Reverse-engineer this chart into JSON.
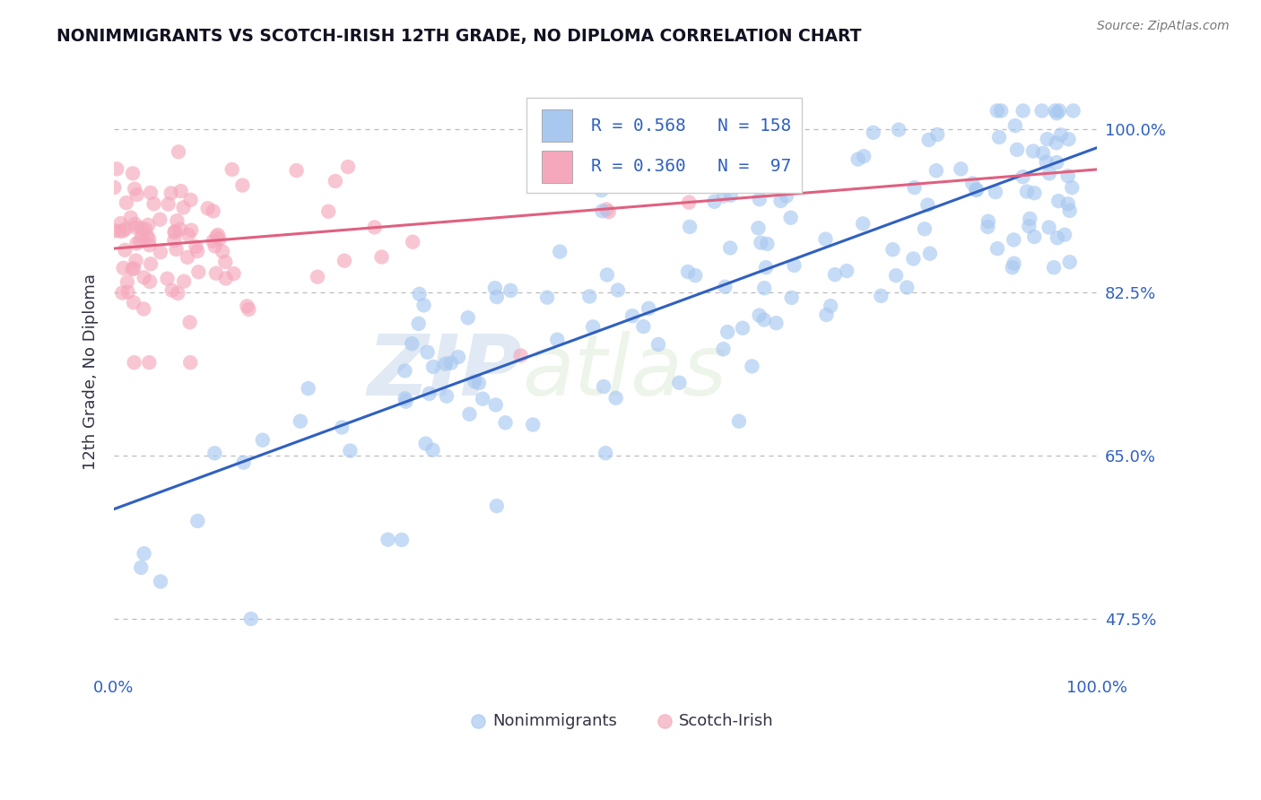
{
  "title": "NONIMMIGRANTS VS SCOTCH-IRISH 12TH GRADE, NO DIPLOMA CORRELATION CHART",
  "source": "Source: ZipAtlas.com",
  "xlabel_blue": "Nonimmigrants",
  "xlabel_pink": "Scotch-Irish",
  "ylabel": "12th Grade, No Diploma",
  "x_min": 0.0,
  "x_max": 1.0,
  "y_min": 0.42,
  "y_max": 1.06,
  "yticks": [
    0.475,
    0.65,
    0.825,
    1.0
  ],
  "ytick_labels": [
    "47.5%",
    "65.0%",
    "82.5%",
    "100.0%"
  ],
  "blue_R": 0.568,
  "blue_N": 158,
  "pink_R": 0.36,
  "pink_N": 97,
  "blue_color": "#A8C8F0",
  "pink_color": "#F5A8BC",
  "blue_line_color": "#3060C0",
  "pink_line_color": "#E06080",
  "watermark_zip": "ZIP",
  "watermark_atlas": "atlas",
  "legend_color": "#3060C0",
  "title_color": "#111122",
  "axis_label_color": "#3060C0",
  "gridline_color": "#bbbbbb",
  "background_color": "#ffffff"
}
